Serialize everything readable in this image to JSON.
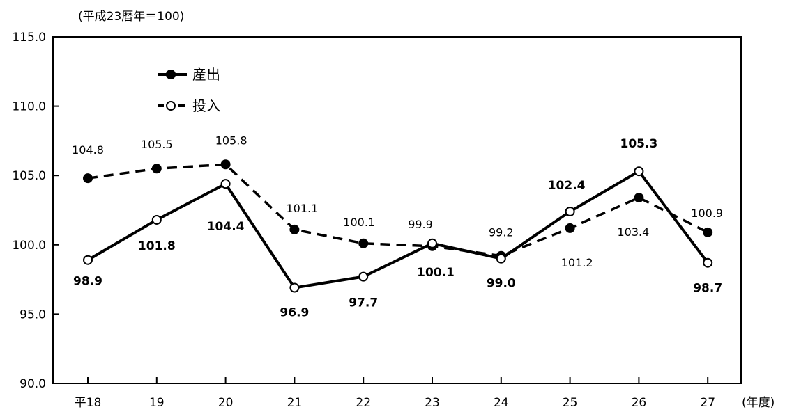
{
  "chart_data": {
    "type": "line",
    "unit_note": "(平成23暦年＝100)",
    "x_unit": "(年度)",
    "categories": [
      "平18",
      "19",
      "20",
      "21",
      "22",
      "23",
      "24",
      "25",
      "26",
      "27"
    ],
    "ylim": [
      90,
      115
    ],
    "y_ticks": [
      "90.0",
      "95.0",
      "100.0",
      "105.0",
      "110.0",
      "115.0"
    ],
    "legend_placement": "top-left",
    "grid": false,
    "series": [
      {
        "name": "産出",
        "line_style": "solid",
        "marker": "open-circle",
        "values": [
          98.9,
          101.8,
          104.4,
          96.9,
          97.7,
          100.1,
          99.0,
          102.4,
          105.3,
          98.7
        ],
        "labels": [
          "98.9",
          "101.8",
          "104.4",
          "96.9",
          "97.7",
          "100.1",
          "99.0",
          "102.4",
          "105.3",
          "98.7"
        ]
      },
      {
        "name": "投入",
        "line_style": "dashed",
        "marker": "filled-circle",
        "values": [
          104.8,
          105.5,
          105.8,
          101.1,
          100.1,
          99.9,
          99.2,
          101.2,
          103.4,
          100.9
        ],
        "labels": [
          "104.8",
          "105.5",
          "105.8",
          "101.1",
          "100.1",
          "99.9",
          "99.2",
          "101.2",
          "103.4",
          "100.9"
        ]
      }
    ]
  }
}
